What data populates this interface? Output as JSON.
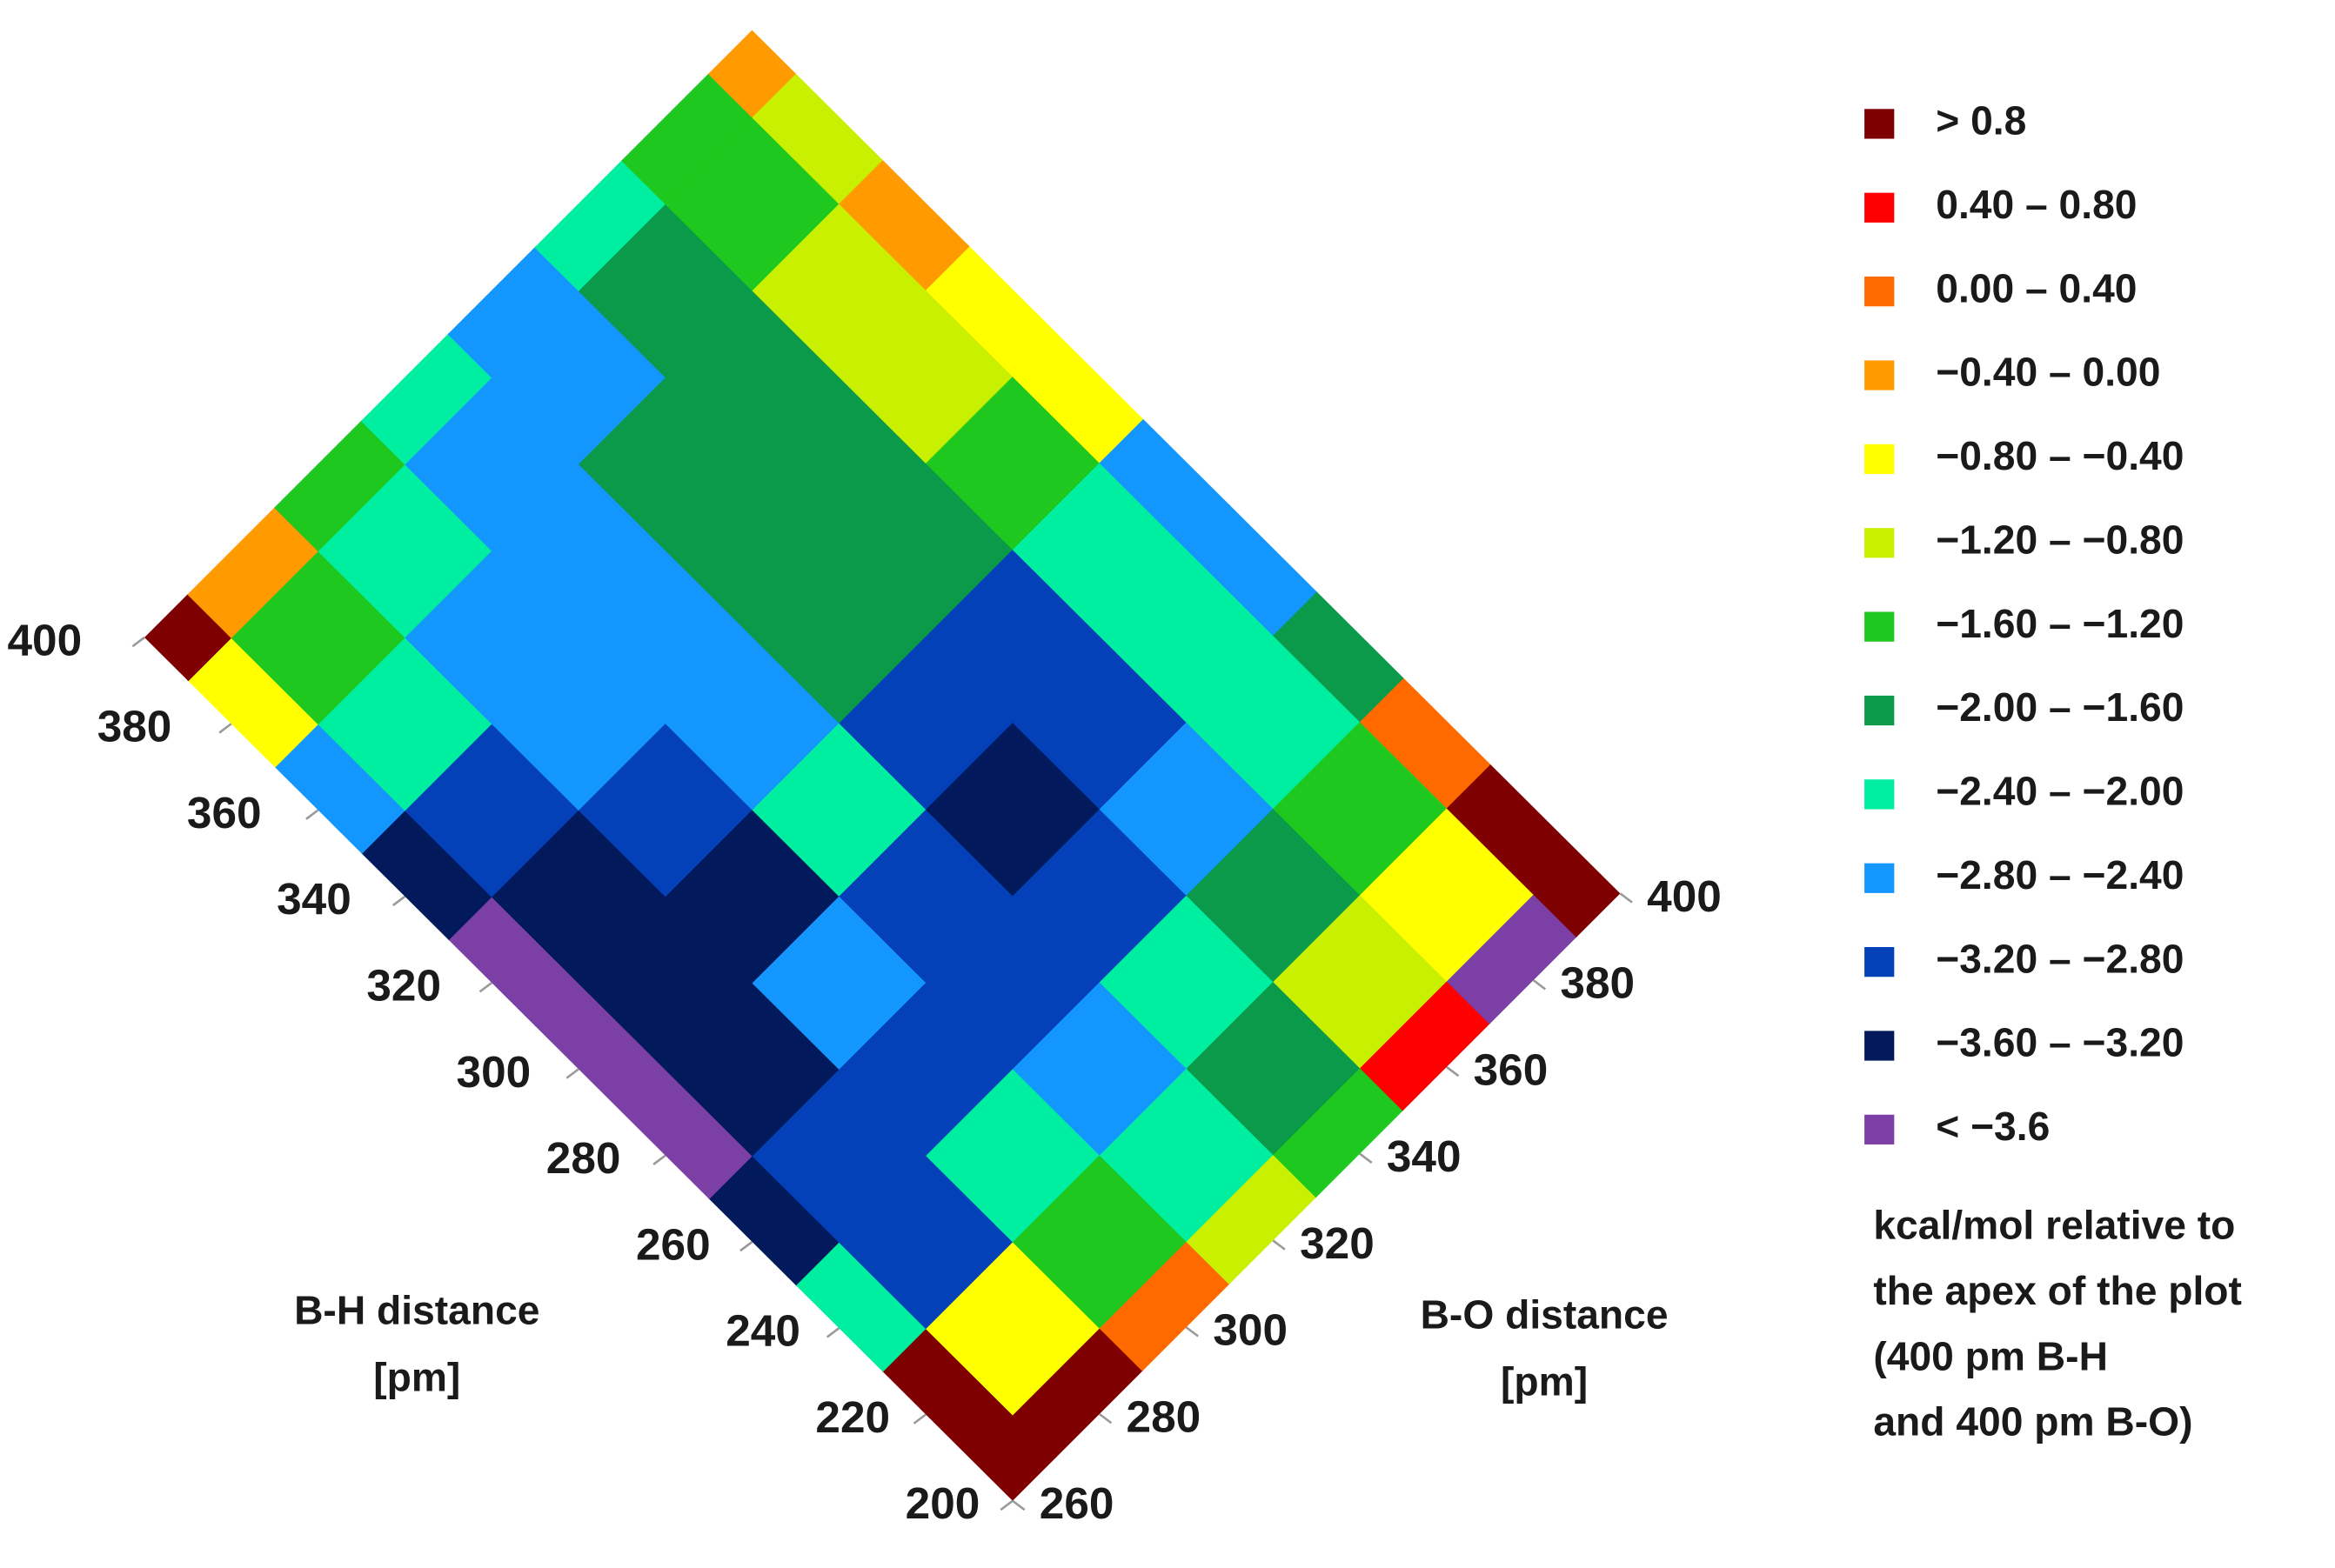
{
  "chart_data": {
    "type": "contour",
    "x_label": [
      "B-O distance",
      "[pm]"
    ],
    "y_label": [
      "B-H distance",
      "[pm]"
    ],
    "x": [
      260,
      280,
      300,
      320,
      340,
      360,
      380,
      400
    ],
    "y": [
      200,
      220,
      240,
      260,
      280,
      300,
      320,
      340,
      360,
      380,
      400
    ],
    "xlim": [
      260,
      400
    ],
    "ylim": [
      200,
      400
    ],
    "xticks": [
      260,
      280,
      300,
      320,
      340,
      360,
      380,
      400
    ],
    "yticks": [
      200,
      220,
      240,
      260,
      280,
      300,
      320,
      340,
      360,
      380,
      400
    ],
    "z": [
      [
        1.2,
        1.0,
        0.2,
        -1.0,
        -1.5,
        0.6,
        -3.8,
        1.0
      ],
      [
        1.0,
        -0.4,
        -1.4,
        -2.0,
        -1.7,
        -1.0,
        -0.6,
        1.0
      ],
      [
        -2.2,
        -3.0,
        -2.2,
        -2.6,
        -2.2,
        -1.8,
        -1.4,
        0.2
      ],
      [
        -3.5,
        -3.0,
        -3.0,
        -2.9,
        -3.0,
        -2.6,
        -2.2,
        -1.8
      ],
      [
        -3.8,
        -3.4,
        -2.6,
        -3.0,
        -3.4,
        -3.0,
        -2.2,
        -2.6
      ],
      [
        -3.8,
        -3.5,
        -3.4,
        -2.2,
        -3.0,
        -3.0,
        -2.2,
        -2.6
      ],
      [
        -3.7,
        -3.4,
        -3.0,
        -2.6,
        -1.8,
        -1.8,
        -1.4,
        -0.6
      ],
      [
        -3.3,
        -3.0,
        -2.6,
        -2.6,
        -1.8,
        -1.8,
        -0.8,
        -0.6
      ],
      [
        -2.6,
        -2.2,
        -2.6,
        -2.6,
        -1.8,
        -1.8,
        -0.8,
        -0.2
      ],
      [
        -0.6,
        -1.4,
        -2.2,
        -2.6,
        -2.5,
        -1.8,
        -1.4,
        -0.8
      ],
      [
        1.0,
        -0.2,
        -1.5,
        -2.2,
        -2.6,
        -2.2,
        -1.4,
        0
      ]
    ],
    "levels": [
      0.8,
      0.4,
      0,
      -0.4,
      -0.8,
      -1.2,
      -1.6,
      -2.0,
      -2.4,
      -2.8,
      -3.2,
      -3.6
    ],
    "level_labels": [
      "> 0.8",
      "0.40 – 0.80",
      "0.00 – 0.40",
      "−0.40 – 0.00",
      "−0.80 – −0.40",
      "−1.20 – −0.80",
      "−1.60 – −1.20",
      "−2.00 – −1.60",
      "−2.40 – −2.00",
      "−2.80 – −2.40",
      "−3.20 – −2.80",
      "−3.60 – −3.20",
      "< −3.6"
    ],
    "level_colors": [
      "#7f0000",
      "#ff0000",
      "#ff6a00",
      "#ff9a00",
      "#ffff00",
      "#c8f000",
      "#1ec81e",
      "#0a9a4a",
      "#00eea0",
      "#1496ff",
      "#0440b8",
      "#021a5c",
      "#7b3fa6"
    ],
    "note": [
      "kcal/mol relative to",
      "the apex of the plot",
      "(400 pm B-H",
      "and 400 pm B-O)"
    ]
  }
}
